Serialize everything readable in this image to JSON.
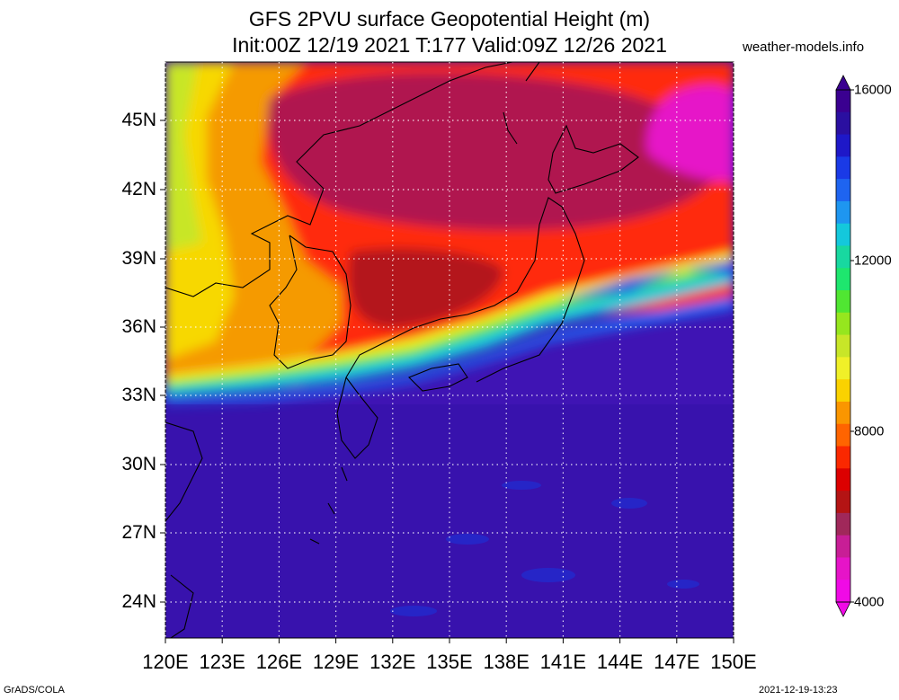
{
  "header": {
    "title_line1": "GFS 2PVU surface Geopotential Height (m)",
    "title_line2": "Init:00Z 12/19 2021 T:177 Valid:09Z 12/26 2021",
    "site": "weather-models.info"
  },
  "footer": {
    "software": "GrADS/COLA",
    "timestamp": "2021-12-19-13:23"
  },
  "map": {
    "lat_labels": [
      "45N",
      "42N",
      "39N",
      "36N",
      "33N",
      "30N",
      "27N",
      "24N"
    ],
    "lon_labels": [
      "120E",
      "123E",
      "126E",
      "129E",
      "132E",
      "135E",
      "138E",
      "141E",
      "144E",
      "147E",
      "150E"
    ]
  },
  "colorbar": {
    "labels": [
      "16000",
      "12000",
      "8000",
      "4000"
    ],
    "colors_top_to_bottom": [
      "#3a0090",
      "#2a0fa0",
      "#1e18c8",
      "#1a3ae6",
      "#1e64f0",
      "#1e96f0",
      "#14c8dc",
      "#18d8a0",
      "#1ee66e",
      "#50e632",
      "#96e61e",
      "#c8e628",
      "#f0f028",
      "#fad200",
      "#fa9600",
      "#ff6400",
      "#fa2800",
      "#dc0000",
      "#b41414",
      "#a0285a",
      "#c81e96",
      "#e614c8",
      "#f00ae6"
    ],
    "accent_blue": "#3f14b4",
    "accent_red": "#ff1e0a"
  }
}
